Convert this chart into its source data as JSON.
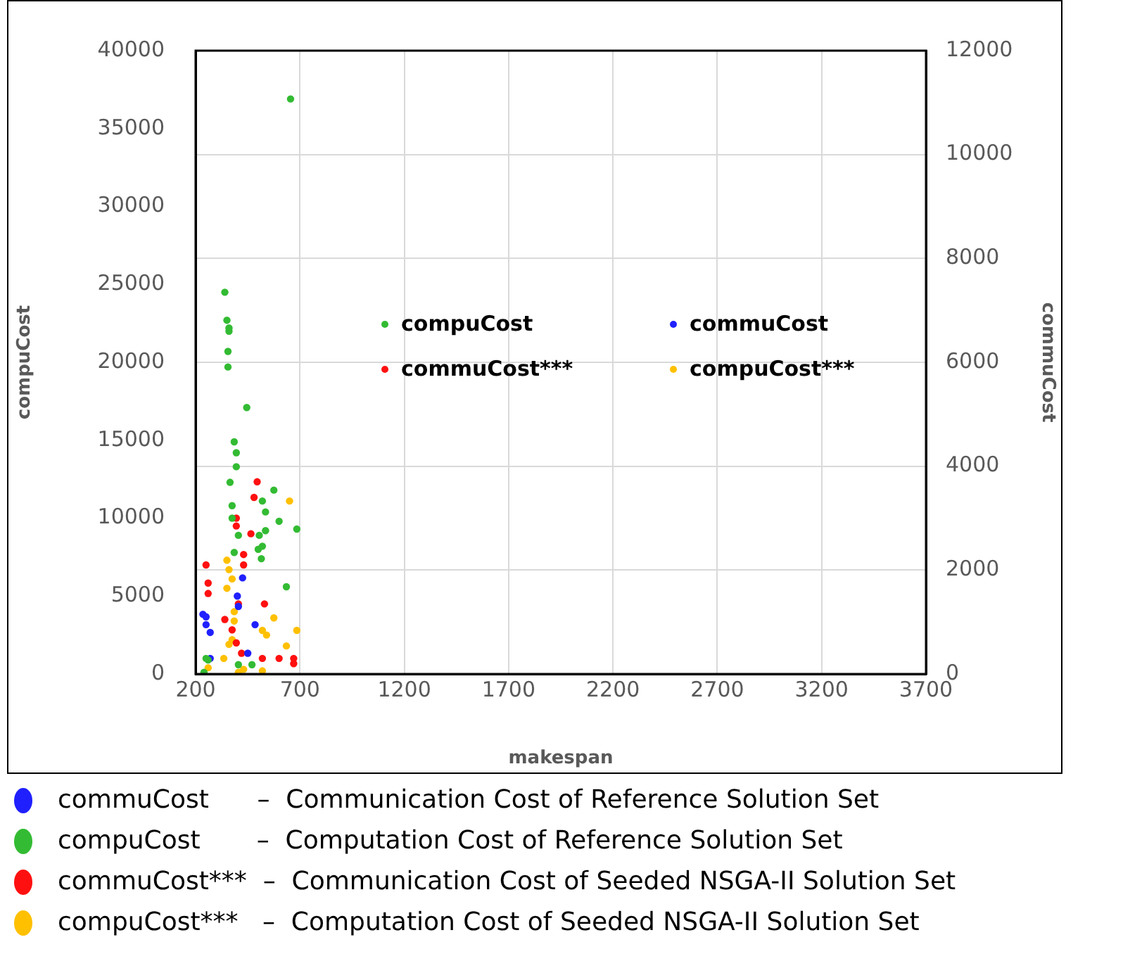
{
  "chart_data": {
    "type": "scatter",
    "xlabel": "makespan",
    "ylabel": "compuCost",
    "y2label": "commuCost",
    "xlim": [
      200,
      3700
    ],
    "xticks": [
      200,
      700,
      1200,
      1700,
      2200,
      2700,
      3200,
      3700
    ],
    "ylim": [
      0,
      40000
    ],
    "yticks": [
      0,
      5000,
      10000,
      15000,
      20000,
      25000,
      30000,
      35000,
      40000
    ],
    "y2lim": [
      0,
      12000
    ],
    "y2ticks": [
      0,
      2000,
      4000,
      6000,
      8000,
      10000,
      12000
    ],
    "grid": true,
    "legend": "top",
    "marker": "circle",
    "series": [
      {
        "name": "compuCost",
        "color": "#33bb33",
        "axis": "y",
        "x": [
          340,
          350,
          360,
          360,
          355,
          355,
          445,
          385,
          395,
          395,
          365,
          375,
          375,
          405,
          520,
          575,
          535,
          600,
          685,
          535,
          505,
          520,
          500,
          515,
          635,
          385,
          250,
          260,
          405,
          470,
          655,
          240
        ],
        "values": [
          24500,
          22700,
          22200,
          22000,
          20700,
          19700,
          17100,
          14900,
          14200,
          13300,
          12300,
          10800,
          10000,
          8900,
          11100,
          11800,
          10400,
          9800,
          9300,
          9200,
          8900,
          8200,
          8000,
          7400,
          5600,
          7800,
          1000,
          900,
          600,
          600,
          36900,
          100
        ]
      },
      {
        "name": "commuCost",
        "color": "#2020ff",
        "axis": "y2",
        "x": [
          250,
          250,
          270,
          235,
          425,
          400,
          405,
          485,
          450,
          270
        ],
        "values": [
          1100,
          950,
          800,
          1150,
          1850,
          1500,
          1300,
          950,
          400,
          300
        ]
      },
      {
        "name": "commuCost***",
        "color": "#ff1010",
        "axis": "y2",
        "x": [
          495,
          480,
          395,
          395,
          465,
          430,
          430,
          250,
          260,
          260,
          530,
          405,
          340,
          375,
          395,
          420,
          520,
          600,
          670,
          670
        ],
        "values": [
          3700,
          3400,
          3000,
          2850,
          2700,
          2300,
          2100,
          2100,
          1750,
          1550,
          1350,
          1350,
          1050,
          850,
          600,
          400,
          300,
          300,
          300,
          200
        ]
      },
      {
        "name": "compuCost***",
        "color": "#ffc000",
        "axis": "y",
        "x": [
          650,
          350,
          360,
          375,
          350,
          385,
          385,
          375,
          360,
          575,
          520,
          540,
          685,
          635,
          335,
          260,
          430,
          520,
          405
        ],
        "values": [
          11100,
          7300,
          6700,
          6100,
          5500,
          4000,
          3400,
          2200,
          1900,
          3600,
          2800,
          2500,
          2800,
          1800,
          1000,
          400,
          300,
          200,
          100
        ]
      }
    ],
    "annotations": [
      "commuCost      –  Communication Cost of Reference Solution Set",
      "compuCost       –  Computation Cost of Reference Solution Set",
      "commuCost***  –  Communication Cost of Seeded NSGA-II Solution Set",
      "compuCost***   –  Computation Cost of Seeded NSGA-II Solution Set"
    ]
  }
}
